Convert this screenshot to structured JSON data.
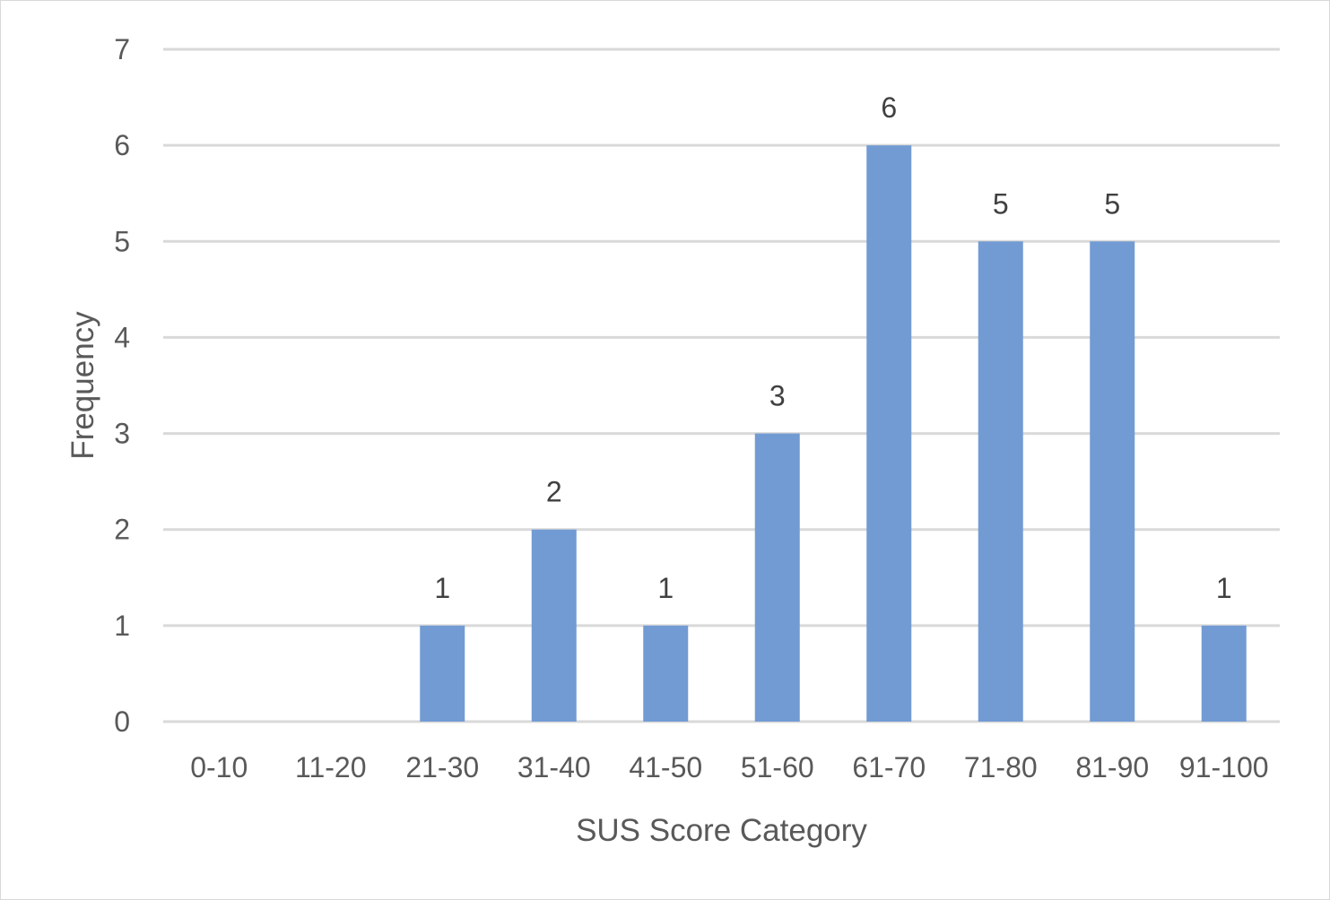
{
  "chart_data": {
    "type": "bar",
    "title": "",
    "xlabel": "SUS Score Category",
    "ylabel": "Frequency",
    "categories": [
      "0-10",
      "11-20",
      "21-30",
      "31-40",
      "41-50",
      "51-60",
      "61-70",
      "71-80",
      "81-90",
      "91-100"
    ],
    "values": [
      0,
      0,
      1,
      2,
      1,
      3,
      6,
      5,
      5,
      1
    ],
    "data_labels": [
      "",
      "",
      "1",
      "2",
      "1",
      "3",
      "6",
      "5",
      "5",
      "1"
    ],
    "y_ticks": [
      "0",
      "1",
      "2",
      "3",
      "4",
      "5",
      "6",
      "7"
    ],
    "ylim": [
      0,
      7
    ],
    "grid": true,
    "legend": "none",
    "bar_color": "#729bd3",
    "grid_color": "#d9d9d9"
  }
}
